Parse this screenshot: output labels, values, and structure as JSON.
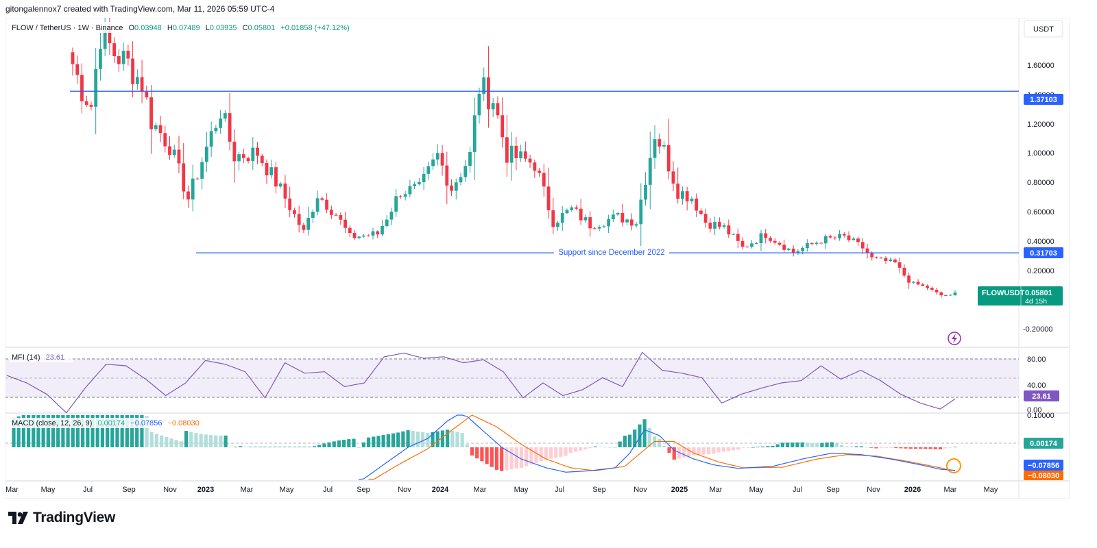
{
  "header": {
    "attribution": "gitongalennox7 created with TradingView.com, Mar 11, 2026 05:59 UTC-4"
  },
  "legend": {
    "symbol": "FLOW / TetherUS · 1W · Binance",
    "o_label": "O",
    "o_value": "0.03948",
    "h_label": "H",
    "h_value": "0.07489",
    "l_label": "L",
    "l_value": "0.03935",
    "c_label": "C",
    "c_value": "0.05801",
    "change": "+0.01858 (+47.12%)"
  },
  "currency_button": "USDT",
  "price_axis": {
    "ticks": [
      "1.60000",
      "1.40000",
      "1.20000",
      "1.00000",
      "0.80000",
      "0.60000",
      "0.40000",
      "0.20000",
      "-0.20000"
    ],
    "resistance_label": "1.37103",
    "support_label": "0.31703",
    "last_symbol": "FLOWUSDT",
    "last_price": "0.05801",
    "countdown": "4d 15h"
  },
  "annotations": {
    "support_text": "Support since December 2022"
  },
  "mfi": {
    "label": "MFI (14)",
    "value": "23.61",
    "ticks": [
      "80.00",
      "40.00",
      "0.00"
    ],
    "badge": "23.61"
  },
  "macd": {
    "label": "MACD (close, 12, 26, 9)",
    "hist_value": "0.00174",
    "macd_value": "−0.07856",
    "signal_value": "−0.08030",
    "axis_top": "0.10000",
    "badge_hist": "0.00174",
    "badge_macd": "−0.07856",
    "badge_signal": "−0.08030"
  },
  "time_axis": [
    "Mar",
    "May",
    "Jul",
    "Sep",
    "Nov",
    "2023",
    "Mar",
    "May",
    "Jul",
    "Sep",
    "Nov",
    "2024",
    "Mar",
    "May",
    "Jul",
    "Sep",
    "Nov",
    "2025",
    "Mar",
    "May",
    "Jul",
    "Sep",
    "Nov",
    "2026",
    "Mar",
    "May"
  ],
  "footer": {
    "brand": "TradingView"
  },
  "colors": {
    "up": "#26a69a",
    "down": "#f23645",
    "level": "#2962ff",
    "mfi": "#7e57c2",
    "macd": "#2962ff",
    "signal": "#ff6d00"
  },
  "chart_data": {
    "type": "candlestick",
    "symbol": "FLOW / TetherUS",
    "interval": "1W",
    "exchange": "Binance",
    "y_range": [
      -0.25,
      1.85
    ],
    "horizontal_levels": [
      1.37103,
      0.31703
    ],
    "anchors": [
      {
        "t": 0,
        "p": 1.55
      },
      {
        "t": 2,
        "p": 1.38
      },
      {
        "t": 4,
        "p": 1.28
      },
      {
        "t": 6,
        "p": 1.75
      },
      {
        "t": 9,
        "p": 1.62
      },
      {
        "t": 12,
        "p": 1.55
      },
      {
        "t": 15,
        "p": 1.42
      },
      {
        "t": 17,
        "p": 1.18
      },
      {
        "t": 21,
        "p": 1.02
      },
      {
        "t": 25,
        "p": 0.67
      },
      {
        "t": 28,
        "p": 0.92
      },
      {
        "t": 32,
        "p": 1.25
      },
      {
        "t": 35,
        "p": 0.95
      },
      {
        "t": 40,
        "p": 0.97
      },
      {
        "t": 45,
        "p": 0.73
      },
      {
        "t": 50,
        "p": 0.45
      },
      {
        "t": 53,
        "p": 0.7
      },
      {
        "t": 57,
        "p": 0.57
      },
      {
        "t": 60,
        "p": 0.42
      },
      {
        "t": 66,
        "p": 0.44
      },
      {
        "t": 71,
        "p": 0.72
      },
      {
        "t": 75,
        "p": 0.73
      },
      {
        "t": 79,
        "p": 0.95
      },
      {
        "t": 82,
        "p": 0.74
      },
      {
        "t": 86,
        "p": 0.95
      },
      {
        "t": 88,
        "p": 1.4
      },
      {
        "t": 91,
        "p": 1.32
      },
      {
        "t": 94,
        "p": 0.96
      },
      {
        "t": 100,
        "p": 0.9
      },
      {
        "t": 104,
        "p": 0.52
      },
      {
        "t": 108,
        "p": 0.6
      },
      {
        "t": 112,
        "p": 0.5
      },
      {
        "t": 118,
        "p": 0.55
      },
      {
        "t": 122,
        "p": 0.52
      },
      {
        "t": 126,
        "p": 1.1
      },
      {
        "t": 128,
        "p": 0.98
      },
      {
        "t": 131,
        "p": 0.72
      },
      {
        "t": 134,
        "p": 0.68
      },
      {
        "t": 137,
        "p": 0.52
      },
      {
        "t": 141,
        "p": 0.48
      },
      {
        "t": 145,
        "p": 0.35
      },
      {
        "t": 150,
        "p": 0.44
      },
      {
        "t": 156,
        "p": 0.32
      },
      {
        "t": 162,
        "p": 0.4
      },
      {
        "t": 167,
        "p": 0.42
      },
      {
        "t": 171,
        "p": 0.35
      },
      {
        "t": 173,
        "p": 0.28
      },
      {
        "t": 178,
        "p": 0.25
      },
      {
        "t": 181,
        "p": 0.13
      },
      {
        "t": 185,
        "p": 0.09
      },
      {
        "t": 188,
        "p": 0.04
      },
      {
        "t": 191,
        "p": 0.039
      }
    ],
    "last_candle": {
      "o": 0.03948,
      "h": 0.07489,
      "l": 0.03935,
      "c": 0.05801
    },
    "mfi_range": [
      0,
      90
    ],
    "mfi_bands": [
      20,
      50,
      80
    ],
    "mfi_anchors": [
      {
        "t": 0,
        "v": 55
      },
      {
        "t": 4,
        "v": 45
      },
      {
        "t": 8,
        "v": 30
      },
      {
        "t": 12,
        "v": 5
      },
      {
        "t": 16,
        "v": 40
      },
      {
        "t": 20,
        "v": 70
      },
      {
        "t": 24,
        "v": 68
      },
      {
        "t": 28,
        "v": 50
      },
      {
        "t": 32,
        "v": 28
      },
      {
        "t": 36,
        "v": 45
      },
      {
        "t": 40,
        "v": 75
      },
      {
        "t": 44,
        "v": 70
      },
      {
        "t": 48,
        "v": 60
      },
      {
        "t": 52,
        "v": 25
      },
      {
        "t": 56,
        "v": 72
      },
      {
        "t": 60,
        "v": 58
      },
      {
        "t": 64,
        "v": 60
      },
      {
        "t": 68,
        "v": 40
      },
      {
        "t": 72,
        "v": 45
      },
      {
        "t": 76,
        "v": 80
      },
      {
        "t": 80,
        "v": 85
      },
      {
        "t": 84,
        "v": 78
      },
      {
        "t": 88,
        "v": 80
      },
      {
        "t": 92,
        "v": 72
      },
      {
        "t": 96,
        "v": 76
      },
      {
        "t": 100,
        "v": 60
      },
      {
        "t": 104,
        "v": 25
      },
      {
        "t": 108,
        "v": 45
      },
      {
        "t": 112,
        "v": 28
      },
      {
        "t": 116,
        "v": 36
      },
      {
        "t": 120,
        "v": 52
      },
      {
        "t": 124,
        "v": 40
      },
      {
        "t": 128,
        "v": 86
      },
      {
        "t": 132,
        "v": 62
      },
      {
        "t": 136,
        "v": 58
      },
      {
        "t": 140,
        "v": 52
      },
      {
        "t": 144,
        "v": 18
      },
      {
        "t": 148,
        "v": 30
      },
      {
        "t": 152,
        "v": 38
      },
      {
        "t": 156,
        "v": 45
      },
      {
        "t": 160,
        "v": 48
      },
      {
        "t": 164,
        "v": 68
      },
      {
        "t": 168,
        "v": 50
      },
      {
        "t": 172,
        "v": 62
      },
      {
        "t": 176,
        "v": 48
      },
      {
        "t": 180,
        "v": 30
      },
      {
        "t": 184,
        "v": 18
      },
      {
        "t": 188,
        "v": 10
      },
      {
        "t": 191,
        "v": 23.61
      }
    ],
    "macd_range": [
      -0.11,
      0.11
    ],
    "macd_anchors": [
      {
        "t": 70,
        "m": -0.12
      },
      {
        "t": 75,
        "m": -0.06
      },
      {
        "t": 80,
        "m": 0.0
      },
      {
        "t": 84,
        "m": 0.03
      },
      {
        "t": 88,
        "m": 0.09
      },
      {
        "t": 91,
        "m": 0.12
      },
      {
        "t": 95,
        "m": 0.06
      },
      {
        "t": 99,
        "m": 0.0
      },
      {
        "t": 103,
        "m": -0.04
      },
      {
        "t": 108,
        "m": -0.07
      },
      {
        "t": 112,
        "m": -0.085
      },
      {
        "t": 117,
        "m": -0.08
      },
      {
        "t": 122,
        "m": -0.07
      },
      {
        "t": 125,
        "m": -0.02
      },
      {
        "t": 128,
        "m": 0.06
      },
      {
        "t": 131,
        "m": 0.04
      },
      {
        "t": 134,
        "m": -0.01
      },
      {
        "t": 138,
        "m": -0.04
      },
      {
        "t": 142,
        "m": -0.06
      },
      {
        "t": 147,
        "m": -0.072
      },
      {
        "t": 154,
        "m": -0.065
      },
      {
        "t": 160,
        "m": -0.04
      },
      {
        "t": 166,
        "m": -0.02
      },
      {
        "t": 172,
        "m": -0.025
      },
      {
        "t": 178,
        "m": -0.04
      },
      {
        "t": 184,
        "m": -0.06
      },
      {
        "t": 188,
        "m": -0.075
      },
      {
        "t": 191,
        "m": -0.07856
      }
    ],
    "signal_anchors": [
      {
        "t": 72,
        "s": -0.12
      },
      {
        "t": 78,
        "s": -0.06
      },
      {
        "t": 84,
        "s": -0.005
      },
      {
        "t": 89,
        "s": 0.06
      },
      {
        "t": 93,
        "s": 0.11
      },
      {
        "t": 98,
        "s": 0.07
      },
      {
        "t": 103,
        "s": 0.01
      },
      {
        "t": 108,
        "s": -0.04
      },
      {
        "t": 113,
        "s": -0.07
      },
      {
        "t": 118,
        "s": -0.08
      },
      {
        "t": 124,
        "s": -0.065
      },
      {
        "t": 130,
        "s": 0.02
      },
      {
        "t": 134,
        "s": 0.02
      },
      {
        "t": 138,
        "s": -0.02
      },
      {
        "t": 143,
        "s": -0.05
      },
      {
        "t": 148,
        "s": -0.07
      },
      {
        "t": 156,
        "s": -0.068
      },
      {
        "t": 163,
        "s": -0.04
      },
      {
        "t": 169,
        "s": -0.025
      },
      {
        "t": 175,
        "s": -0.03
      },
      {
        "t": 182,
        "s": -0.05
      },
      {
        "t": 188,
        "s": -0.07
      },
      {
        "t": 191,
        "s": -0.0803
      }
    ]
  }
}
